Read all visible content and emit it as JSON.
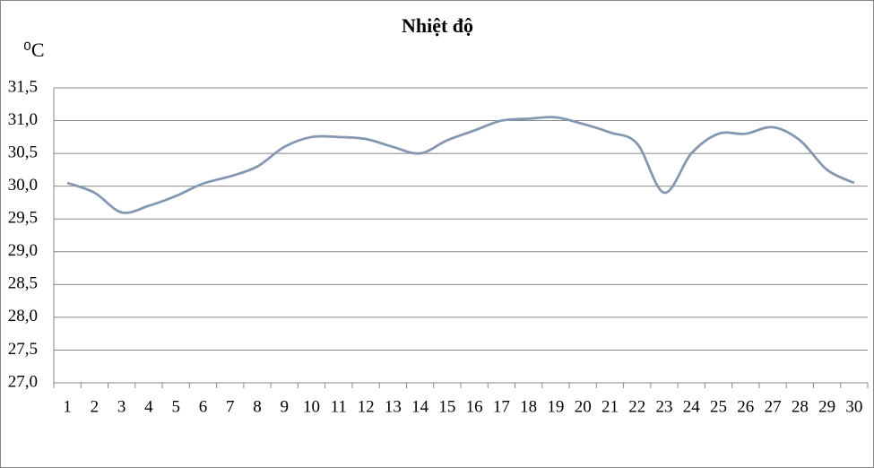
{
  "chart_data": {
    "type": "line",
    "title": "Nhiệt độ",
    "y_label": "⁰C",
    "categories": [
      "1",
      "2",
      "3",
      "4",
      "5",
      "6",
      "7",
      "8",
      "9",
      "10",
      "11",
      "12",
      "13",
      "14",
      "15",
      "16",
      "17",
      "18",
      "19",
      "20",
      "21",
      "22",
      "23",
      "24",
      "25",
      "26",
      "27",
      "28",
      "29",
      "30"
    ],
    "series": [
      {
        "color": "#8496b0",
        "values": [
          30.05,
          29.9,
          29.6,
          29.7,
          29.85,
          30.04,
          30.15,
          30.3,
          30.6,
          30.75,
          30.75,
          30.72,
          30.6,
          30.5,
          30.7,
          30.85,
          31.0,
          31.03,
          31.05,
          30.95,
          30.82,
          30.65,
          29.9,
          30.5,
          30.8,
          30.8,
          30.9,
          30.7,
          30.25,
          30.05
        ]
      }
    ],
    "ylim": [
      27.0,
      31.5
    ],
    "yticks": [
      {
        "value": 27.0,
        "label": "27,0"
      },
      {
        "value": 27.5,
        "label": "27,5"
      },
      {
        "value": 28.0,
        "label": "28,0"
      },
      {
        "value": 28.5,
        "label": "28,5"
      },
      {
        "value": 29.0,
        "label": "29,0"
      },
      {
        "value": 29.5,
        "label": "29,5"
      },
      {
        "value": 30.0,
        "label": "30,0"
      },
      {
        "value": 30.5,
        "label": "30,5"
      },
      {
        "value": 31.0,
        "label": "31,0"
      },
      {
        "value": 31.5,
        "label": "31,5"
      }
    ],
    "grid": true
  }
}
